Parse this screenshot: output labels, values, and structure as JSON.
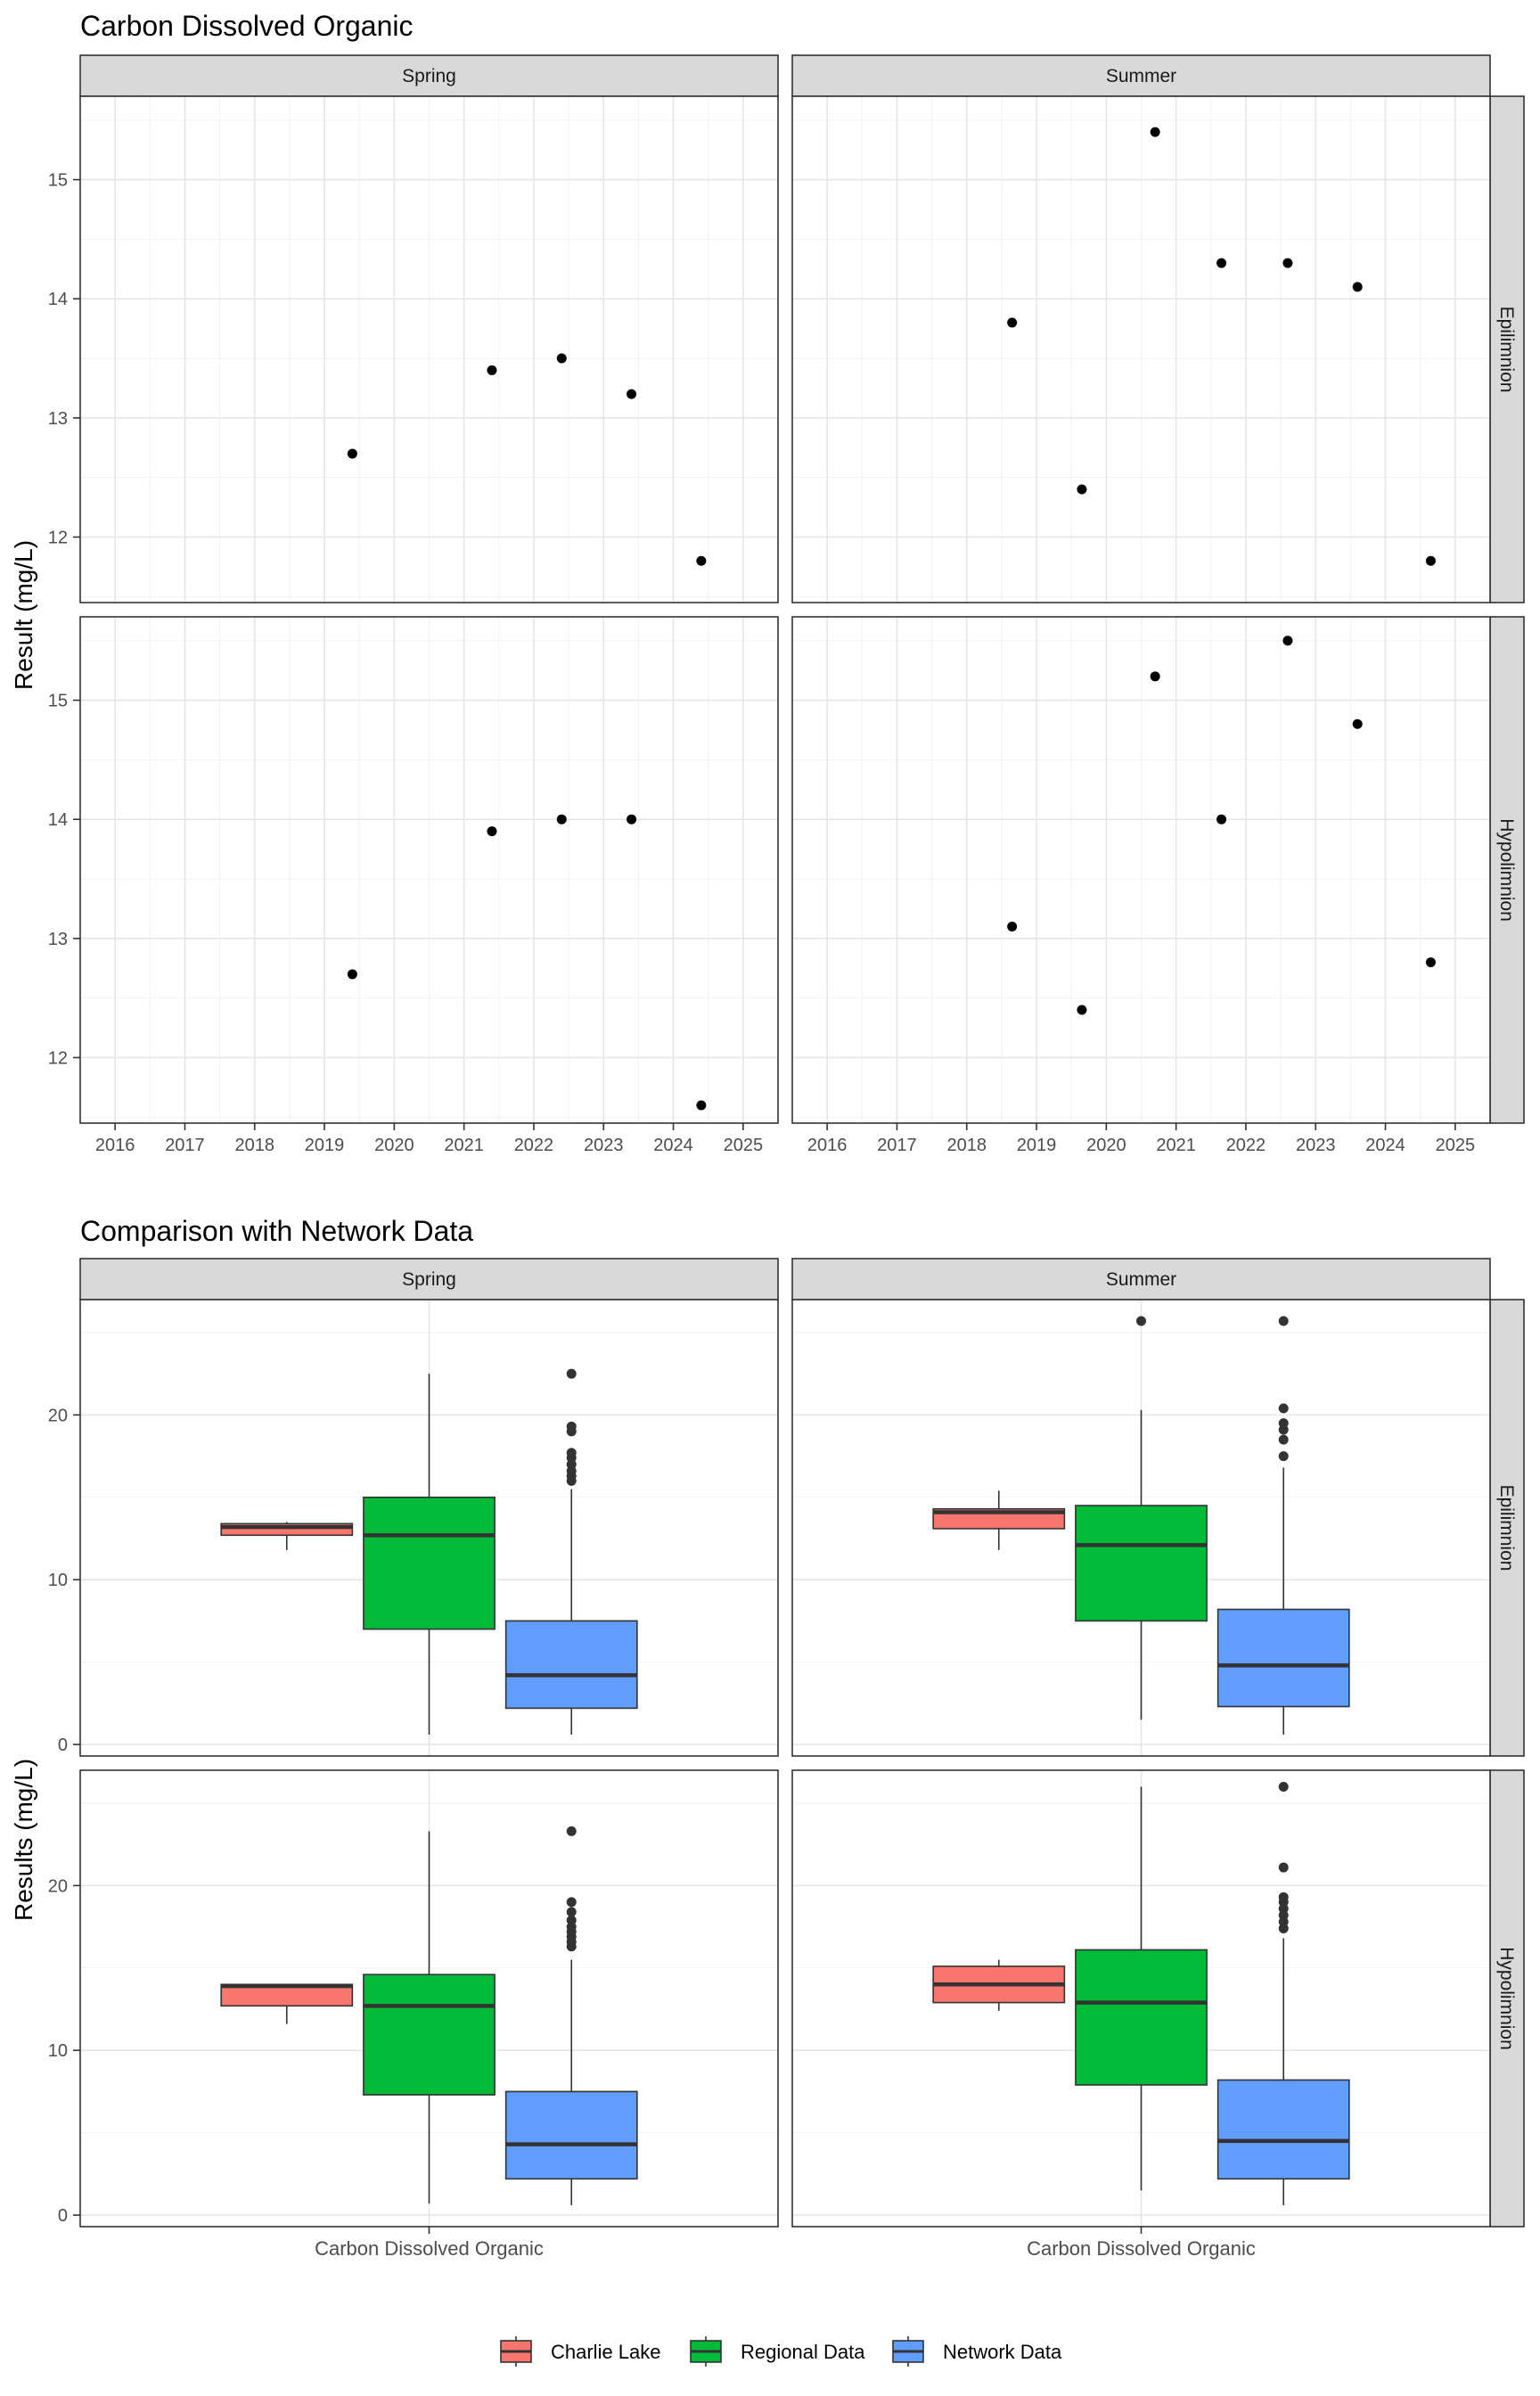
{
  "chart_data": [
    {
      "type": "scatter",
      "title": "Carbon Dissolved Organic",
      "ylabel": "Result (mg/L)",
      "xlabel": "",
      "column_strips": [
        "Spring",
        "Summer"
      ],
      "row_strips": [
        "Epilimnion",
        "Hypolimnion"
      ],
      "x_ticks": [
        "2016",
        "2017",
        "2018",
        "2019",
        "2020",
        "2021",
        "2022",
        "2023",
        "2024",
        "2025"
      ],
      "y_ticks": [
        "12",
        "13",
        "14",
        "15"
      ],
      "xlim": [
        2015.5,
        2025.5
      ],
      "ylim": [
        11.45,
        15.7
      ],
      "grid": true,
      "point_color": "#000000",
      "panels": [
        {
          "column": "Spring",
          "row": "Epilimnion",
          "points": [
            {
              "x": 2019.4,
              "y": 12.7
            },
            {
              "x": 2021.4,
              "y": 13.4
            },
            {
              "x": 2022.4,
              "y": 13.5
            },
            {
              "x": 2023.4,
              "y": 13.2
            },
            {
              "x": 2024.4,
              "y": 11.8
            }
          ]
        },
        {
          "column": "Summer",
          "row": "Epilimnion",
          "points": [
            {
              "x": 2018.65,
              "y": 13.8
            },
            {
              "x": 2019.65,
              "y": 12.4
            },
            {
              "x": 2020.7,
              "y": 15.4
            },
            {
              "x": 2021.65,
              "y": 14.3
            },
            {
              "x": 2022.6,
              "y": 14.3
            },
            {
              "x": 2023.6,
              "y": 14.1
            },
            {
              "x": 2024.65,
              "y": 11.8
            }
          ]
        },
        {
          "column": "Spring",
          "row": "Hypolimnion",
          "points": [
            {
              "x": 2019.4,
              "y": 12.7
            },
            {
              "x": 2021.4,
              "y": 13.9
            },
            {
              "x": 2022.4,
              "y": 14.0
            },
            {
              "x": 2023.4,
              "y": 14.0
            },
            {
              "x": 2024.4,
              "y": 11.6
            }
          ]
        },
        {
          "column": "Summer",
          "row": "Hypolimnion",
          "points": [
            {
              "x": 2018.65,
              "y": 13.1
            },
            {
              "x": 2019.65,
              "y": 12.4
            },
            {
              "x": 2020.7,
              "y": 15.2
            },
            {
              "x": 2021.65,
              "y": 14.0
            },
            {
              "x": 2022.6,
              "y": 15.5
            },
            {
              "x": 2023.6,
              "y": 14.8
            },
            {
              "x": 2024.65,
              "y": 12.8
            }
          ]
        }
      ]
    },
    {
      "type": "box",
      "title": "Comparison with Network Data",
      "ylabel": "Results (mg/L)",
      "xlabel": "",
      "column_strips": [
        "Spring",
        "Summer"
      ],
      "row_strips": [
        "Epilimnion",
        "Hypolimnion"
      ],
      "category_label": "Carbon Dissolved Organic",
      "y_ticks": [
        "0",
        "10",
        "20"
      ],
      "ylim": [
        -0.7,
        27.0
      ],
      "grid": true,
      "legend_position": "bottom",
      "series": [
        {
          "name": "Charlie Lake",
          "color": "#F8766D"
        },
        {
          "name": "Regional Data",
          "color": "#00BA38"
        },
        {
          "name": "Network Data",
          "color": "#619CFF"
        }
      ],
      "panels": [
        {
          "column": "Spring",
          "row": "Epilimnion",
          "boxes": [
            {
              "series": "Charlie Lake",
              "min": 11.8,
              "q1": 12.7,
              "median": 13.2,
              "q3": 13.4,
              "max": 13.5,
              "outliers": []
            },
            {
              "series": "Regional Data",
              "min": 0.6,
              "q1": 7.0,
              "median": 12.7,
              "q3": 15.0,
              "max": 22.5,
              "outliers": []
            },
            {
              "series": "Network Data",
              "min": 0.6,
              "q1": 2.2,
              "median": 4.2,
              "q3": 7.5,
              "max": 15.5,
              "outliers": [
                16.0,
                16.3,
                16.6,
                17.0,
                17.4,
                17.7,
                19.0,
                19.3,
                22.5
              ]
            }
          ]
        },
        {
          "column": "Summer",
          "row": "Epilimnion",
          "boxes": [
            {
              "series": "Charlie Lake",
              "min": 11.8,
              "q1": 13.1,
              "median": 14.1,
              "q3": 14.3,
              "max": 15.4,
              "outliers": []
            },
            {
              "series": "Regional Data",
              "min": 1.5,
              "q1": 7.5,
              "median": 12.1,
              "q3": 14.5,
              "max": 20.3,
              "outliers": [
                25.7
              ]
            },
            {
              "series": "Network Data",
              "min": 0.6,
              "q1": 2.3,
              "median": 4.8,
              "q3": 8.2,
              "max": 16.8,
              "outliers": [
                17.5,
                18.5,
                19.1,
                19.5,
                20.4,
                25.7
              ]
            }
          ]
        },
        {
          "column": "Spring",
          "row": "Hypolimnion",
          "boxes": [
            {
              "series": "Charlie Lake",
              "min": 11.6,
              "q1": 12.7,
              "median": 13.9,
              "q3": 14.0,
              "max": 14.0,
              "outliers": []
            },
            {
              "series": "Regional Data",
              "min": 0.7,
              "q1": 7.3,
              "median": 12.7,
              "q3": 14.6,
              "max": 23.3,
              "outliers": []
            },
            {
              "series": "Network Data",
              "min": 0.6,
              "q1": 2.2,
              "median": 4.3,
              "q3": 7.5,
              "max": 15.5,
              "outliers": [
                16.3,
                16.6,
                16.9,
                17.2,
                17.5,
                17.9,
                18.4,
                19.0,
                23.3
              ]
            }
          ]
        },
        {
          "column": "Summer",
          "row": "Hypolimnion",
          "boxes": [
            {
              "series": "Charlie Lake",
              "min": 12.4,
              "q1": 12.9,
              "median": 14.0,
              "q3": 15.1,
              "max": 15.5,
              "outliers": []
            },
            {
              "series": "Regional Data",
              "min": 1.5,
              "q1": 7.9,
              "median": 12.9,
              "q3": 16.1,
              "max": 26.0,
              "outliers": []
            },
            {
              "series": "Network Data",
              "min": 0.6,
              "q1": 2.2,
              "median": 4.5,
              "q3": 8.2,
              "max": 16.8,
              "outliers": [
                17.4,
                17.8,
                18.2,
                18.6,
                19.0,
                19.3,
                21.1,
                26.0
              ]
            }
          ]
        }
      ]
    }
  ]
}
